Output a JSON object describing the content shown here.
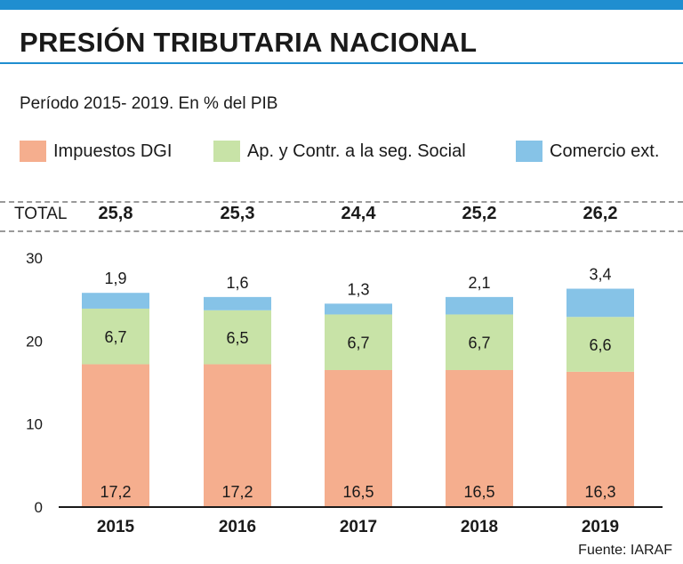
{
  "header": {
    "title": "PRESIÓN TRIBUTARIA NACIONAL",
    "subtitle": "Período 2015- 2019. En % del PIB"
  },
  "totals": {
    "label": "TOTAL",
    "values": [
      "25,8",
      "25,3",
      "24,4",
      "25,2",
      "26,2"
    ]
  },
  "source": "Fuente: IARAF",
  "colors": {
    "accent": "#1f8ed0",
    "impuestos_dgi": "#f5ae8e",
    "seguridad_social": "#c8e3a7",
    "comercio_ext": "#86c3e7"
  },
  "chart_data": {
    "type": "bar",
    "stacked": true,
    "categories": [
      "2015",
      "2016",
      "2017",
      "2018",
      "2019"
    ],
    "series": [
      {
        "name": "Impuestos DGI",
        "values": [
          17.2,
          17.2,
          16.5,
          16.5,
          16.3
        ],
        "labels": [
          "17,2",
          "17,2",
          "16,5",
          "16,5",
          "16,3"
        ],
        "color": "#f5ae8e"
      },
      {
        "name": "Ap. y Contr. a la seg. Social",
        "values": [
          6.7,
          6.5,
          6.7,
          6.7,
          6.6
        ],
        "labels": [
          "6,7",
          "6,5",
          "6,7",
          "6,7",
          "6,6"
        ],
        "color": "#c8e3a7"
      },
      {
        "name": "Comercio ext.",
        "values": [
          1.9,
          1.6,
          1.3,
          2.1,
          3.4
        ],
        "labels": [
          "1,9",
          "1,6",
          "1,3",
          "2,1",
          "3,4"
        ],
        "color": "#86c3e7"
      }
    ],
    "title": "PRESIÓN TRIBUTARIA NACIONAL",
    "xlabel": "",
    "ylabel": "",
    "ylim": [
      0,
      30
    ],
    "yticks": [
      0,
      10,
      20,
      30
    ],
    "grid": false,
    "legend": "top"
  }
}
